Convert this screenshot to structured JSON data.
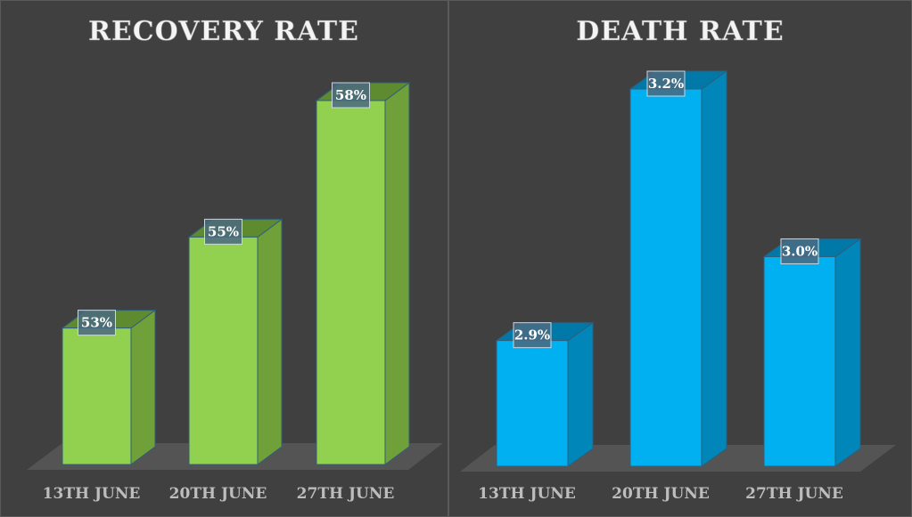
{
  "chart_data": [
    {
      "type": "bar",
      "title": "RECOVERY RATE",
      "categories": [
        "13TH JUNE",
        "20TH JUNE",
        "27TH JUNE"
      ],
      "values": [
        53,
        55,
        58
      ],
      "data_labels": [
        "53%",
        "55%",
        "58%"
      ],
      "ylim": [
        50,
        60
      ],
      "grid": false,
      "color": "#92d050",
      "side_color": "#70a03a",
      "top_color": "#5e8a30"
    },
    {
      "type": "bar",
      "title": "DEATH RATE",
      "categories": [
        "13TH JUNE",
        "20TH JUNE",
        "27TH JUNE"
      ],
      "values": [
        2.9,
        3.2,
        3.0
      ],
      "data_labels": [
        "2.9%",
        "3.2%",
        "3.0%"
      ],
      "ylim": [
        2.75,
        3.3
      ],
      "grid": false,
      "color": "#00b0f0",
      "side_color": "#0086b8",
      "top_color": "#0079a8"
    }
  ]
}
